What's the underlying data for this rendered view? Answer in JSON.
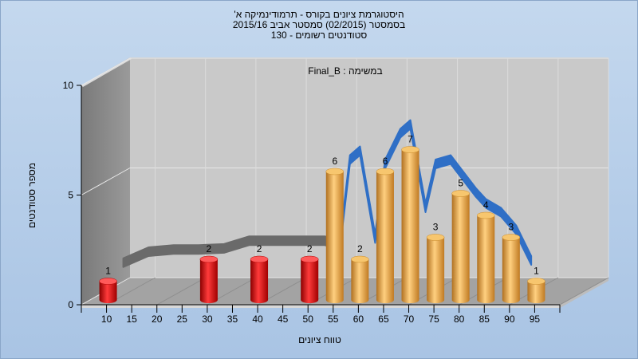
{
  "chart_data": {
    "type": "bar",
    "title_lines": [
      "היסטוגרמת ציונים בקורס - תרמודינמיקה א'",
      "בסמסטר  (02/2015)  סמסטר אביב 2015/16",
      "סטודנטים רשומים - 130"
    ],
    "subtitle": "במשימה : Final_B",
    "xlabel": "טווח ציונים",
    "ylabel": "מספר סטודנטים",
    "x_ticks": [
      "10",
      "15",
      "20",
      "25",
      "30",
      "35",
      "40",
      "45",
      "50",
      "55",
      "60",
      "65",
      "70",
      "75",
      "80",
      "85",
      "90",
      "95"
    ],
    "y_ticks": [
      "0",
      "5",
      "10"
    ],
    "ylim": [
      0,
      10
    ],
    "bars": [
      {
        "x": 10,
        "value": 1,
        "color": "red"
      },
      {
        "x": 30,
        "value": 2,
        "color": "red"
      },
      {
        "x": 40,
        "value": 2,
        "color": "red"
      },
      {
        "x": 50,
        "value": 2,
        "color": "red"
      },
      {
        "x": 55,
        "value": 6,
        "color": "orange"
      },
      {
        "x": 60,
        "value": 2,
        "color": "orange"
      },
      {
        "x": 65,
        "value": 6,
        "color": "orange"
      },
      {
        "x": 70,
        "value": 7,
        "color": "orange"
      },
      {
        "x": 75,
        "value": 3,
        "color": "orange"
      },
      {
        "x": 80,
        "value": 5,
        "color": "orange"
      },
      {
        "x": 85,
        "value": 4,
        "color": "orange"
      },
      {
        "x": 90,
        "value": 3,
        "color": "orange"
      },
      {
        "x": 95,
        "value": 1,
        "color": "orange"
      }
    ],
    "trend_grey": [
      {
        "x": 10,
        "y": 1.1
      },
      {
        "x": 15,
        "y": 1.6
      },
      {
        "x": 20,
        "y": 1.7
      },
      {
        "x": 25,
        "y": 1.7
      },
      {
        "x": 30,
        "y": 1.75
      },
      {
        "x": 35,
        "y": 2.1
      },
      {
        "x": 40,
        "y": 2.1
      },
      {
        "x": 45,
        "y": 2.1
      },
      {
        "x": 50,
        "y": 2.1
      },
      {
        "x": 53,
        "y": 1.9
      }
    ],
    "trend_blue": [
      {
        "x": 53,
        "y": 1.9
      },
      {
        "x": 55,
        "y": 5.8
      },
      {
        "x": 57,
        "y": 6.2
      },
      {
        "x": 60,
        "y": 2.2
      },
      {
        "x": 62,
        "y": 5.6
      },
      {
        "x": 65,
        "y": 7.0
      },
      {
        "x": 67,
        "y": 7.4
      },
      {
        "x": 70,
        "y": 3.6
      },
      {
        "x": 72,
        "y": 5.6
      },
      {
        "x": 75,
        "y": 5.8
      },
      {
        "x": 77,
        "y": 5.2
      },
      {
        "x": 80,
        "y": 4.3
      },
      {
        "x": 82,
        "y": 3.8
      },
      {
        "x": 85,
        "y": 3.4
      },
      {
        "x": 88,
        "y": 2.6
      },
      {
        "x": 91,
        "y": 1.2
      }
    ],
    "colors": {
      "background": "#b8cfe9",
      "wall_left": "#8a8a8a",
      "wall_back": "#c8c8c8",
      "floor": "#a8a8a8",
      "red_bar": "#e01818",
      "orange_bar": "#e9a83c",
      "trend_blue": "#2f6fc6",
      "trend_grey": "#6a6a6a"
    }
  }
}
